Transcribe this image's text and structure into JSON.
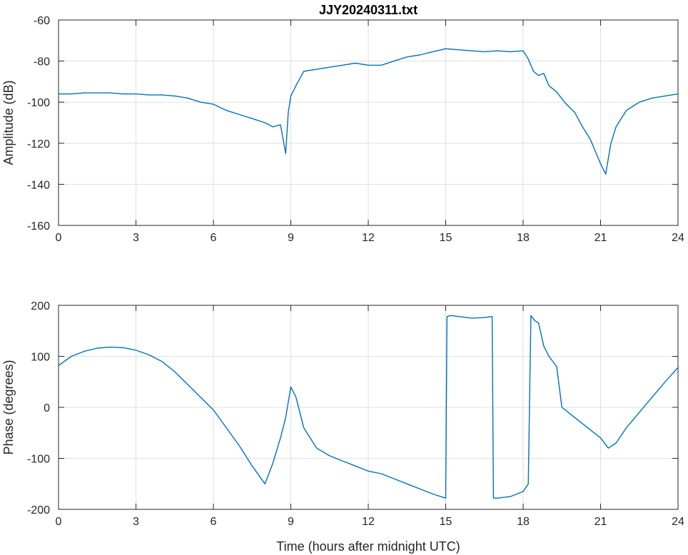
{
  "chart_data": [
    {
      "type": "line",
      "title": "JJY20240311.txt",
      "xlabel": "",
      "ylabel": "Amplitude (dB)",
      "xlim": [
        0,
        24
      ],
      "ylim": [
        -160,
        -60
      ],
      "xticks": [
        0,
        3,
        6,
        9,
        12,
        15,
        18,
        21,
        24
      ],
      "yticks": [
        -160,
        -140,
        -120,
        -100,
        -80,
        -60
      ],
      "xtick_labels": [
        "0",
        "3",
        "6",
        "9",
        "12",
        "15",
        "18",
        "21",
        "24"
      ],
      "ytick_labels": [
        "-160",
        "-140",
        "-120",
        "-100",
        "-80",
        "-60"
      ],
      "grid": true,
      "color": "#0072bd",
      "series": [
        {
          "name": "Amplitude",
          "x": [
            0,
            0.5,
            1,
            1.5,
            2,
            2.5,
            3,
            3.5,
            4,
            4.5,
            5,
            5.5,
            6,
            6.5,
            7,
            7.5,
            8,
            8.3,
            8.6,
            8.8,
            8.9,
            9.0,
            9.2,
            9.5,
            10,
            10.5,
            11,
            11.5,
            12,
            12.5,
            13,
            13.5,
            14,
            14.5,
            15,
            15.5,
            16,
            16.5,
            17,
            17.5,
            18,
            18.2,
            18.4,
            18.6,
            18.8,
            19,
            19.3,
            19.6,
            20,
            20.3,
            20.6,
            21,
            21.2,
            21.4,
            21.6,
            21.8,
            22,
            22.5,
            23,
            23.5,
            24
          ],
          "y": [
            -96,
            -96,
            -95.5,
            -95.5,
            -95.5,
            -96,
            -96,
            -96.5,
            -96.5,
            -97,
            -98,
            -100,
            -101,
            -104,
            -106,
            -108,
            -110,
            -112,
            -111,
            -125,
            -105,
            -97,
            -92,
            -85,
            -84,
            -83,
            -82,
            -81,
            -82,
            -82,
            -80,
            -78,
            -77,
            -75.5,
            -74,
            -74.5,
            -75,
            -75.5,
            -75,
            -75.5,
            -75,
            -79,
            -85,
            -87,
            -86,
            -92,
            -95,
            -100,
            -105,
            -112,
            -118,
            -130,
            -135,
            -120,
            -112,
            -108,
            -104,
            -100,
            -98,
            -97,
            -96
          ]
        }
      ]
    },
    {
      "type": "line",
      "title": "",
      "xlabel": "Time (hours after midnight UTC)",
      "ylabel": "Phase (degrees)",
      "xlim": [
        0,
        24
      ],
      "ylim": [
        -200,
        200
      ],
      "xticks": [
        0,
        3,
        6,
        9,
        12,
        15,
        18,
        21,
        24
      ],
      "yticks": [
        -200,
        -100,
        0,
        100,
        200
      ],
      "xtick_labels": [
        "0",
        "3",
        "6",
        "9",
        "12",
        "15",
        "18",
        "21",
        "24"
      ],
      "ytick_labels": [
        "-200",
        "-100",
        "0",
        "100",
        "200"
      ],
      "grid": true,
      "color": "#0072bd",
      "series": [
        {
          "name": "Phase",
          "x": [
            0,
            0.5,
            1,
            1.5,
            2,
            2.5,
            3,
            3.5,
            4,
            4.5,
            5,
            5.5,
            6,
            6.5,
            7,
            7.5,
            8,
            8.3,
            8.6,
            8.8,
            9.0,
            9.2,
            9.5,
            10,
            10.5,
            11,
            11.5,
            12,
            12.5,
            13,
            13.5,
            14,
            14.5,
            15,
            15.05,
            15.2,
            15.5,
            16,
            16.5,
            16.8,
            16.85,
            17,
            17.5,
            18,
            18.2,
            18.3,
            18.45,
            18.6,
            18.8,
            19,
            19.3,
            19.5,
            20,
            20.5,
            21,
            21.3,
            21.6,
            22,
            22.5,
            23,
            23.5,
            24
          ],
          "y": [
            82,
            100,
            110,
            116,
            118,
            117,
            112,
            103,
            90,
            70,
            45,
            20,
            -5,
            -40,
            -75,
            -115,
            -150,
            -110,
            -60,
            -20,
            40,
            20,
            -40,
            -80,
            -95,
            -105,
            -115,
            -125,
            -130,
            -140,
            -150,
            -160,
            -170,
            -178,
            178,
            180,
            178,
            175,
            176,
            178,
            -178,
            -178,
            -175,
            -165,
            -150,
            180,
            170,
            165,
            120,
            100,
            80,
            0,
            -20,
            -40,
            -60,
            -80,
            -70,
            -40,
            -10,
            20,
            50,
            78
          ]
        }
      ]
    }
  ]
}
